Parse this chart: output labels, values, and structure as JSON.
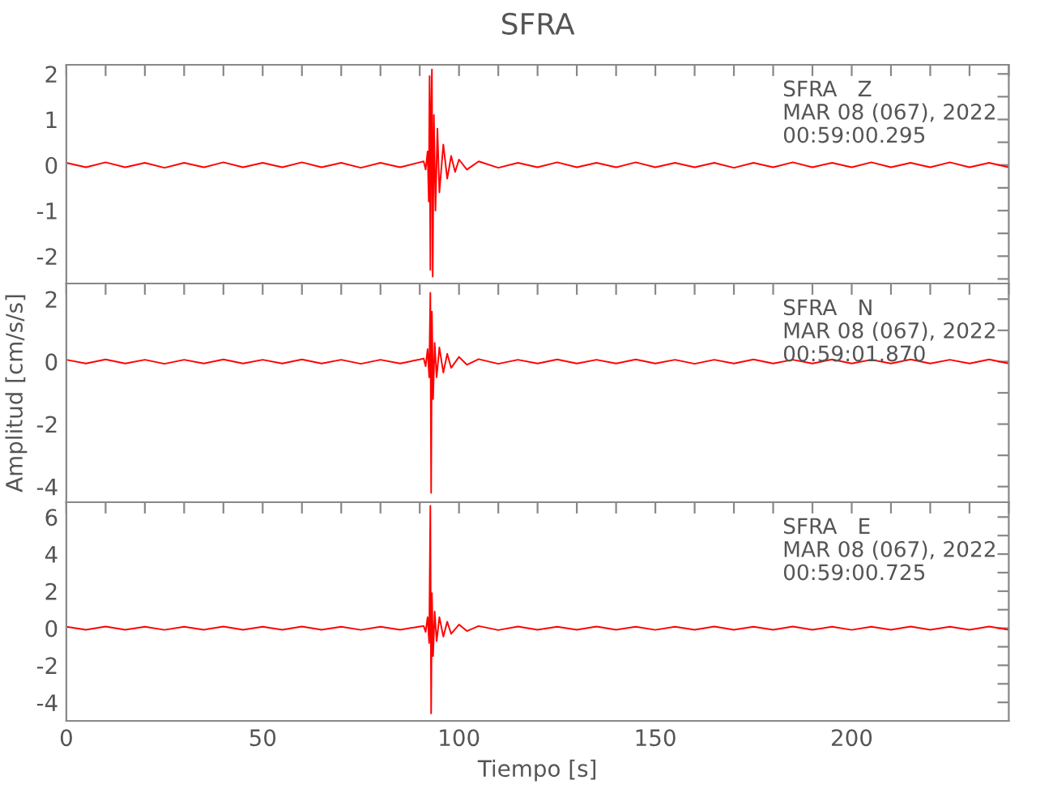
{
  "chart_data": [
    {
      "type": "line",
      "title": "SFRA",
      "annotations": [
        "SFRA   Z\nMAR 08 (067), 2022\n00:59:00.295"
      ],
      "tick_labels": "y",
      "grid": false,
      "legend": false,
      "marker": "none",
      "line_style": "solid",
      "xlim": [
        0,
        240
      ],
      "xticks": [
        {
          "value": 0,
          "label": null
        },
        {
          "value": 10,
          "label": null
        },
        {
          "value": 20,
          "label": null
        },
        {
          "value": 30,
          "label": null
        },
        {
          "value": 40,
          "label": null
        },
        {
          "value": 50,
          "label": null
        },
        {
          "value": 60,
          "label": null
        },
        {
          "value": 70,
          "label": null
        },
        {
          "value": 80,
          "label": null
        },
        {
          "value": 90,
          "label": null
        },
        {
          "value": 100,
          "label": null
        },
        {
          "value": 110,
          "label": null
        },
        {
          "value": 120,
          "label": null
        },
        {
          "value": 130,
          "label": null
        },
        {
          "value": 140,
          "label": null
        },
        {
          "value": 150,
          "label": null
        },
        {
          "value": 160,
          "label": null
        },
        {
          "value": 170,
          "label": null
        },
        {
          "value": 180,
          "label": null
        },
        {
          "value": 190,
          "label": null
        },
        {
          "value": 200,
          "label": null
        },
        {
          "value": 210,
          "label": null
        },
        {
          "value": 220,
          "label": null
        },
        {
          "value": 230,
          "label": null
        },
        {
          "value": 240,
          "label": null
        }
      ],
      "ylim": [
        -2.6,
        2.2
      ],
      "yticks": [
        {
          "value": -2.5,
          "label": null
        },
        -2,
        {
          "value": -1.5,
          "label": null
        },
        -1,
        {
          "value": -0.5,
          "label": null
        },
        0,
        {
          "value": 0.5,
          "label": null
        },
        1,
        {
          "value": 1.5,
          "label": null
        },
        2
      ],
      "series": [
        {
          "color": "#ff0000",
          "x": [
            0,
            5,
            10,
            15,
            20,
            25,
            30,
            35,
            40,
            45,
            50,
            55,
            60,
            65,
            70,
            75,
            80,
            85,
            90,
            91,
            91.5,
            92,
            92.3,
            92.5,
            92.7,
            92.9,
            93.1,
            93.3,
            93.6,
            94,
            94.5,
            95,
            96,
            97,
            98,
            99,
            100,
            102,
            105,
            110,
            115,
            120,
            125,
            130,
            135,
            140,
            145,
            150,
            155,
            160,
            165,
            170,
            175,
            180,
            185,
            190,
            195,
            200,
            205,
            210,
            215,
            220,
            225,
            230,
            235,
            240
          ],
          "values": [
            0.05,
            -0.05,
            0.06,
            -0.05,
            0.05,
            -0.06,
            0.05,
            -0.05,
            0.06,
            -0.05,
            0.05,
            -0.05,
            0.06,
            -0.05,
            0.05,
            -0.06,
            0.05,
            -0.05,
            0.06,
            0.08,
            -0.1,
            0.3,
            -0.8,
            1.95,
            -2.3,
            1.2,
            2.1,
            -2.45,
            1.1,
            -1.0,
            0.8,
            -0.6,
            0.45,
            -0.3,
            0.2,
            -0.15,
            0.12,
            -0.1,
            0.08,
            -0.06,
            0.05,
            -0.05,
            0.06,
            -0.05,
            0.05,
            -0.05,
            0.06,
            -0.05,
            0.05,
            -0.05,
            0.05,
            -0.06,
            0.05,
            -0.05,
            0.06,
            -0.05,
            0.05,
            -0.05,
            0.06,
            -0.05,
            0.05,
            -0.05,
            0.06,
            -0.05,
            0.05,
            -0.05
          ]
        }
      ]
    },
    {
      "type": "line",
      "ylabel": "Amplitud [cm/s/s]",
      "annotations": [
        "SFRA   N\nMAR 08 (067), 2022\n00:59:01.870"
      ],
      "tick_labels": "y",
      "grid": false,
      "legend": false,
      "marker": "none",
      "line_style": "solid",
      "xlim": [
        0,
        240
      ],
      "xticks": [
        {
          "value": 0,
          "label": null
        },
        {
          "value": 10,
          "label": null
        },
        {
          "value": 20,
          "label": null
        },
        {
          "value": 30,
          "label": null
        },
        {
          "value": 40,
          "label": null
        },
        {
          "value": 50,
          "label": null
        },
        {
          "value": 60,
          "label": null
        },
        {
          "value": 70,
          "label": null
        },
        {
          "value": 80,
          "label": null
        },
        {
          "value": 90,
          "label": null
        },
        {
          "value": 100,
          "label": null
        },
        {
          "value": 110,
          "label": null
        },
        {
          "value": 120,
          "label": null
        },
        {
          "value": 130,
          "label": null
        },
        {
          "value": 140,
          "label": null
        },
        {
          "value": 150,
          "label": null
        },
        {
          "value": 160,
          "label": null
        },
        {
          "value": 170,
          "label": null
        },
        {
          "value": 180,
          "label": null
        },
        {
          "value": 190,
          "label": null
        },
        {
          "value": 200,
          "label": null
        },
        {
          "value": 210,
          "label": null
        },
        {
          "value": 220,
          "label": null
        },
        {
          "value": 230,
          "label": null
        },
        {
          "value": 240,
          "label": null
        }
      ],
      "ylim": [
        -4.5,
        2.5
      ],
      "yticks": [
        -4,
        {
          "value": -3,
          "label": null
        },
        -2,
        {
          "value": -1,
          "label": null
        },
        0,
        {
          "value": 1,
          "label": null
        },
        2
      ],
      "series": [
        {
          "color": "#ff0000",
          "x": [
            0,
            5,
            10,
            15,
            20,
            25,
            30,
            35,
            40,
            45,
            50,
            55,
            60,
            65,
            70,
            75,
            80,
            85,
            90,
            91,
            91.5,
            92,
            92.4,
            92.7,
            92.9,
            93.1,
            93.4,
            93.8,
            94.3,
            95,
            96,
            97,
            98,
            100,
            102,
            105,
            110,
            115,
            120,
            125,
            130,
            135,
            140,
            145,
            150,
            155,
            160,
            165,
            170,
            175,
            180,
            185,
            190,
            195,
            200,
            205,
            210,
            215,
            220,
            225,
            230,
            235,
            240
          ],
          "values": [
            0.06,
            -0.06,
            0.07,
            -0.06,
            0.06,
            -0.07,
            0.06,
            -0.06,
            0.07,
            -0.06,
            0.06,
            -0.06,
            0.07,
            -0.06,
            0.06,
            -0.07,
            0.06,
            -0.06,
            0.07,
            0.1,
            -0.15,
            0.4,
            -0.5,
            2.2,
            -4.2,
            1.6,
            -1.2,
            0.6,
            -0.5,
            0.45,
            -0.35,
            0.25,
            -0.2,
            0.15,
            -0.1,
            0.08,
            -0.07,
            0.06,
            -0.06,
            0.07,
            -0.06,
            0.06,
            -0.06,
            0.07,
            -0.06,
            0.06,
            -0.07,
            0.06,
            -0.06,
            0.07,
            -0.06,
            0.06,
            -0.06,
            0.07,
            -0.06,
            0.06,
            -0.06,
            0.07,
            -0.06,
            0.06,
            -0.06,
            0.07,
            -0.06
          ]
        }
      ]
    },
    {
      "type": "line",
      "xlabel": "Tiempo [s]",
      "annotations": [
        "SFRA   E\nMAR 08 (067), 2022\n00:59:00.725"
      ],
      "grid": false,
      "legend": false,
      "marker": "none",
      "line_style": "solid",
      "xlim": [
        0,
        240
      ],
      "xticks": [
        0,
        {
          "value": 10,
          "label": null
        },
        {
          "value": 20,
          "label": null
        },
        {
          "value": 30,
          "label": null
        },
        {
          "value": 40,
          "label": null
        },
        50,
        {
          "value": 60,
          "label": null
        },
        {
          "value": 70,
          "label": null
        },
        {
          "value": 80,
          "label": null
        },
        {
          "value": 90,
          "label": null
        },
        100,
        {
          "value": 110,
          "label": null
        },
        {
          "value": 120,
          "label": null
        },
        {
          "value": 130,
          "label": null
        },
        {
          "value": 140,
          "label": null
        },
        150,
        {
          "value": 160,
          "label": null
        },
        {
          "value": 170,
          "label": null
        },
        {
          "value": 180,
          "label": null
        },
        {
          "value": 190,
          "label": null
        },
        200,
        {
          "value": 210,
          "label": null
        },
        {
          "value": 220,
          "label": null
        },
        {
          "value": 230,
          "label": null
        },
        {
          "value": 240,
          "label": null
        }
      ],
      "ylim": [
        -5,
        6.8
      ],
      "yticks": [
        -4,
        {
          "value": -3,
          "label": null
        },
        -2,
        {
          "value": -1,
          "label": null
        },
        0,
        {
          "value": 1,
          "label": null
        },
        2,
        {
          "value": 3,
          "label": null
        },
        4,
        {
          "value": 5,
          "label": null
        },
        6
      ],
      "series": [
        {
          "color": "#ff0000",
          "x": [
            0,
            5,
            10,
            15,
            20,
            25,
            30,
            35,
            40,
            45,
            50,
            55,
            60,
            65,
            70,
            75,
            80,
            85,
            90,
            91,
            91.5,
            92,
            92.4,
            92.7,
            92.9,
            93.1,
            93.4,
            93.8,
            94.3,
            95,
            96,
            97,
            98,
            100,
            102,
            105,
            110,
            115,
            120,
            125,
            130,
            135,
            140,
            145,
            150,
            155,
            160,
            165,
            170,
            175,
            180,
            185,
            190,
            195,
            200,
            205,
            210,
            215,
            220,
            225,
            230,
            235,
            240
          ],
          "values": [
            0.08,
            -0.08,
            0.09,
            -0.08,
            0.08,
            -0.09,
            0.08,
            -0.08,
            0.09,
            -0.08,
            0.08,
            -0.08,
            0.09,
            -0.08,
            0.08,
            -0.09,
            0.08,
            -0.08,
            0.09,
            0.12,
            -0.2,
            0.6,
            -0.8,
            6.6,
            -4.6,
            1.9,
            -1.5,
            0.9,
            -0.7,
            0.6,
            -0.45,
            0.35,
            -0.3,
            0.2,
            -0.15,
            0.12,
            -0.1,
            0.09,
            -0.08,
            0.08,
            -0.08,
            0.09,
            -0.08,
            0.08,
            -0.09,
            0.08,
            -0.08,
            0.09,
            -0.08,
            0.08,
            -0.08,
            0.09,
            -0.08,
            0.08,
            -0.09,
            0.08,
            -0.08,
            0.09,
            -0.08,
            0.08,
            -0.08,
            0.09,
            -0.08
          ]
        }
      ]
    }
  ]
}
